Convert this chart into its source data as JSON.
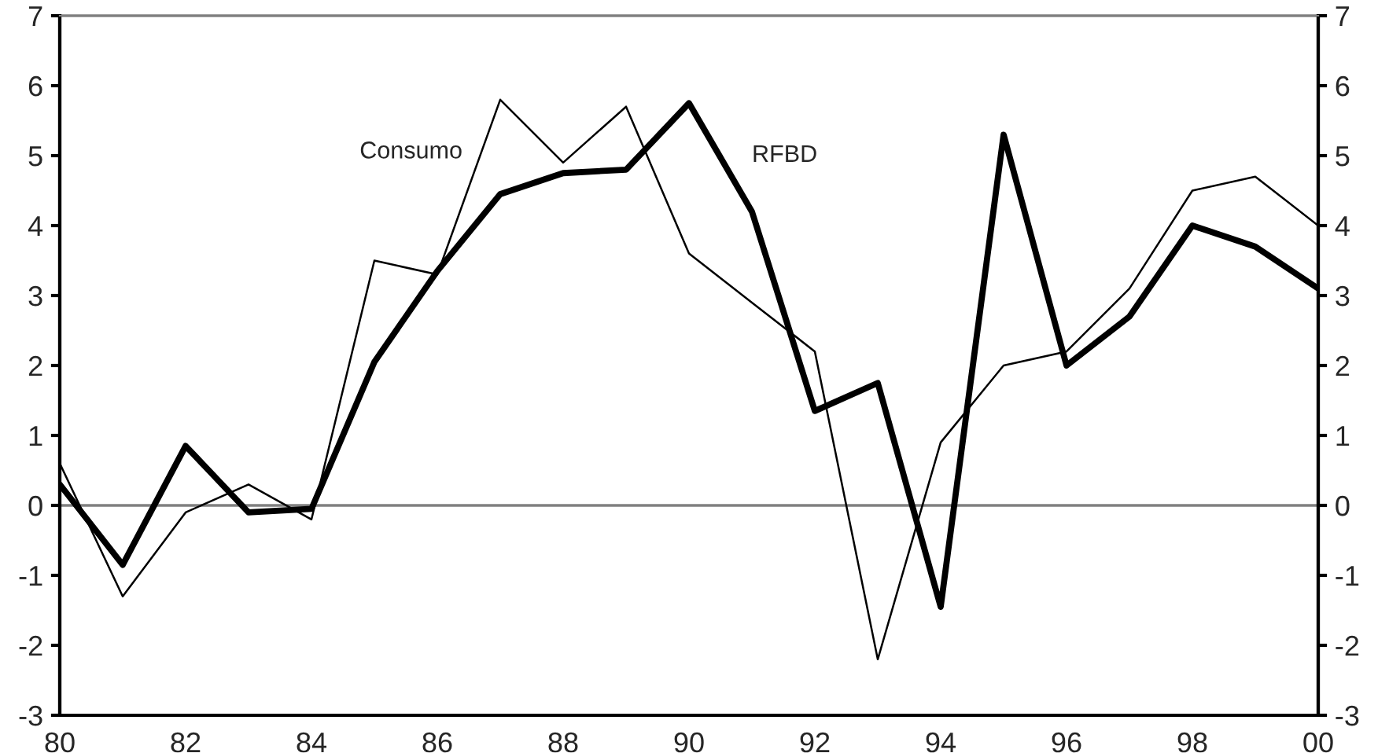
{
  "chart_data": {
    "type": "line",
    "categories": [
      "80",
      null,
      "82",
      null,
      "84",
      null,
      "86",
      null,
      "88",
      null,
      "90",
      null,
      "92",
      null,
      "94",
      null,
      "96",
      null,
      "98",
      null,
      "00"
    ],
    "series": [
      {
        "name": "Consumo",
        "color": "#000000",
        "values": [
          0.6,
          -1.3,
          -0.1,
          0.3,
          -0.2,
          3.5,
          3.3,
          5.8,
          4.9,
          5.7,
          3.6,
          2.9,
          2.2,
          -2.2,
          0.9,
          2.0,
          2.2,
          3.1,
          4.5,
          4.7,
          4.0
        ]
      },
      {
        "name": "RFBD",
        "color": "#000000",
        "values": [
          0.3,
          -0.85,
          0.85,
          -0.1,
          -0.05,
          2.05,
          3.35,
          4.45,
          4.75,
          4.8,
          5.75,
          4.2,
          1.35,
          1.75,
          -1.45,
          5.3,
          2.0,
          2.7,
          4.0,
          3.7,
          3.1
        ]
      }
    ],
    "ylim": [
      -3,
      7
    ],
    "yticks": [
      -3,
      -2,
      -1,
      0,
      1,
      2,
      3,
      4,
      5,
      6,
      7
    ],
    "y2lim": [
      -3,
      7
    ],
    "y2ticks": [
      -3,
      -2,
      -1,
      0,
      1,
      2,
      3,
      4,
      5,
      6,
      7
    ],
    "ref_lines": [
      {
        "axis": "y",
        "value": 0,
        "color": "#808080"
      }
    ],
    "grid": false,
    "legend": false,
    "marker": "none",
    "line_style": "solid"
  }
}
